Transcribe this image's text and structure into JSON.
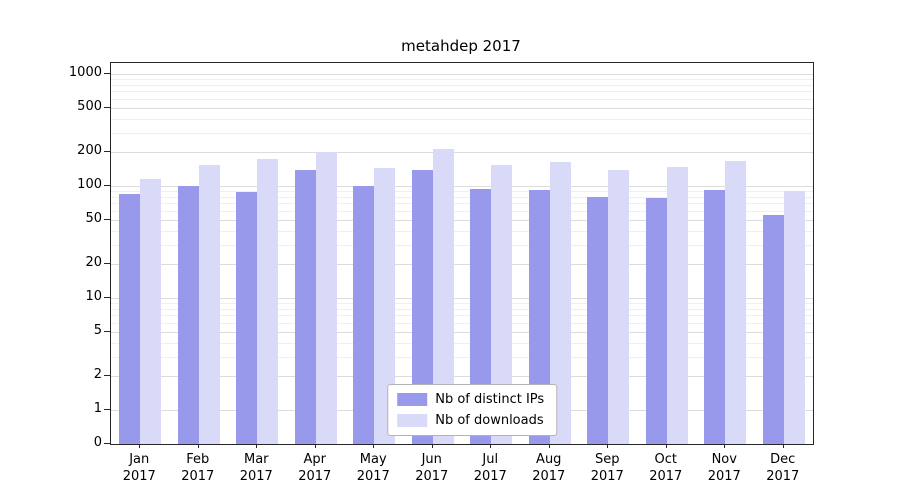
{
  "title": "metahdep 2017",
  "chart_data": {
    "type": "bar",
    "title": "metahdep 2017",
    "x_year": "2017",
    "categories": [
      "Jan",
      "Feb",
      "Mar",
      "Apr",
      "May",
      "Jun",
      "Jul",
      "Aug",
      "Sep",
      "Oct",
      "Nov",
      "Dec"
    ],
    "series": [
      {
        "name": "Nb of distinct IPs",
        "color": "#9999ec",
        "values": [
          85,
          100,
          88,
          138,
          100,
          140,
          95,
          92,
          80,
          78,
          92,
          55
        ]
      },
      {
        "name": "Nb of downloads",
        "color": "#d9d9f8",
        "values": [
          115,
          155,
          175,
          200,
          145,
          212,
          155,
          165,
          140,
          148,
          168,
          90
        ]
      }
    ],
    "y_scale": "symlog",
    "y_ticks": [
      0,
      1,
      2,
      5,
      10,
      20,
      50,
      100,
      200,
      500,
      1000
    ],
    "y_minor_gridlines": [
      3,
      4,
      6,
      7,
      8,
      9,
      30,
      40,
      60,
      70,
      80,
      90,
      300,
      400,
      600,
      700,
      800,
      900
    ],
    "ylim": [
      0,
      1250
    ],
    "grid": true,
    "legend_position": "lower center"
  }
}
